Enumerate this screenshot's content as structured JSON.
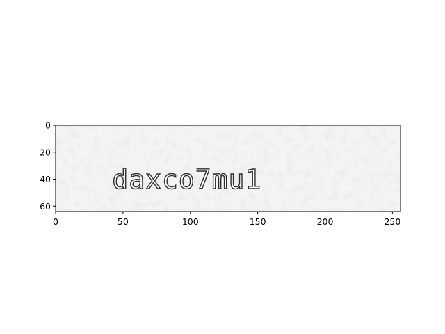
{
  "chart_data": {
    "type": "image",
    "title": "",
    "xlabel": "",
    "ylabel": "",
    "xlim": [
      0,
      256
    ],
    "ylim": [
      64,
      0
    ],
    "x_ticks": [
      0,
      50,
      100,
      150,
      200,
      250
    ],
    "y_ticks": [
      0,
      20,
      40,
      60
    ],
    "image_text": "daxco7mu1",
    "image_text_origin": [
      42,
      47
    ],
    "background_color": "#f3f3f3",
    "text_color": "#2e2e2e",
    "grid": false,
    "legend": "none"
  }
}
